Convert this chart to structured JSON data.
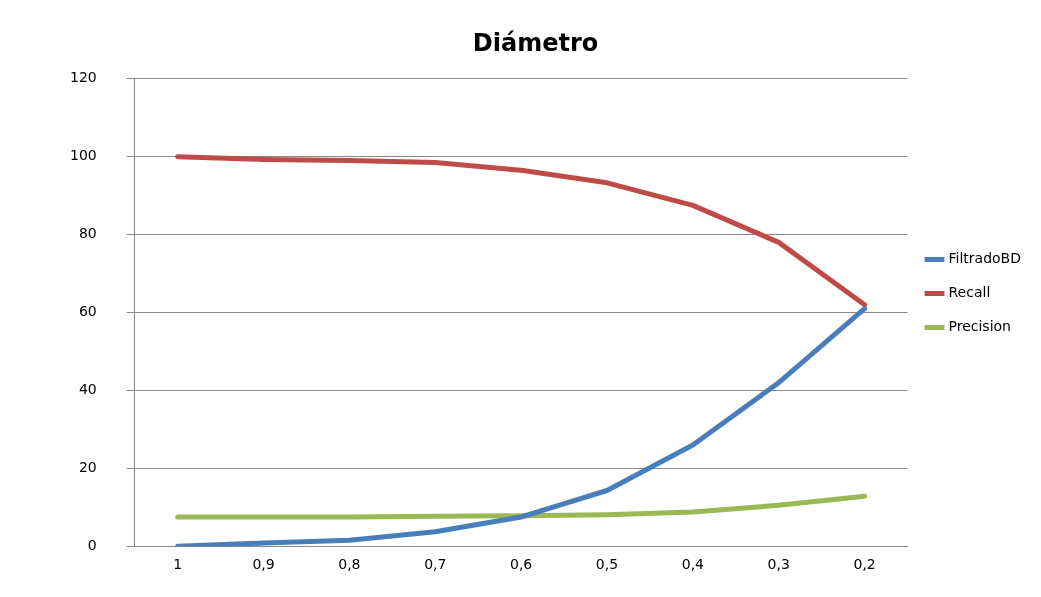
{
  "chart_data": {
    "type": "line",
    "title": "Diámetro",
    "categories": [
      "1",
      "0,9",
      "0,8",
      "0,7",
      "0,6",
      "0,5",
      "0,4",
      "0,3",
      "0,2"
    ],
    "series": [
      {
        "name": "FiltradoBD",
        "color": "#4a7ebb",
        "values": [
          0,
          0.8,
          1.5,
          3.7,
          7.5,
          14.3,
          26,
          42,
          61
        ]
      },
      {
        "name": "Recall",
        "color": "#be4b48",
        "values": [
          100,
          99.3,
          99,
          98.5,
          96.5,
          93.3,
          87.5,
          78,
          62
        ]
      },
      {
        "name": "Precision",
        "color": "#98b954",
        "values": [
          7.5,
          7.5,
          7.5,
          7.7,
          7.8,
          8.1,
          8.8,
          10.5,
          12.8
        ]
      }
    ],
    "ylim": [
      0,
      120
    ],
    "yticks": [
      0,
      20,
      40,
      60,
      80,
      100,
      120
    ],
    "grid": "y",
    "legend": "right",
    "marker": "none",
    "line_style": "solid"
  }
}
